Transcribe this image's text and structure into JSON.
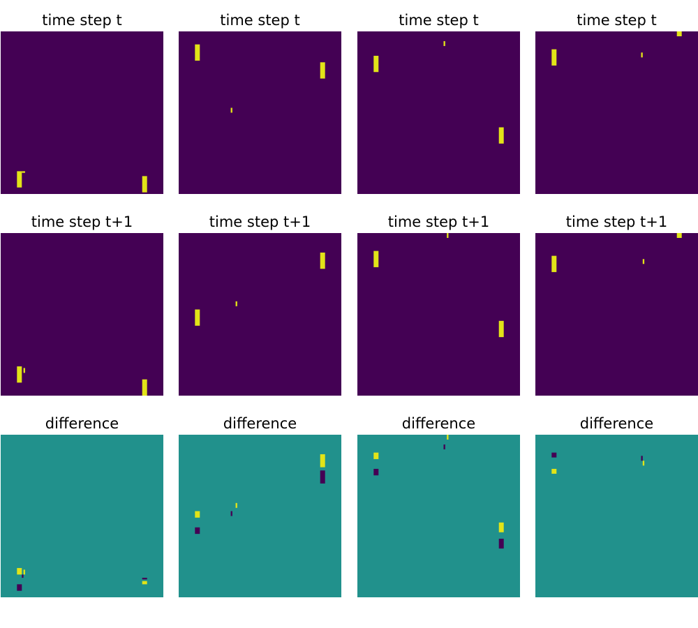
{
  "colors": {
    "background": "#440154",
    "object": "#e2e418",
    "diff_background": "#21918c",
    "diff_positive": "#e2e418",
    "diff_negative": "#440154"
  },
  "chart_data": {
    "type": "heatmap",
    "layout": {
      "rows": 3,
      "cols": 4
    },
    "grid_size": 100,
    "row_titles": [
      "time step t",
      "time step t+1",
      "difference"
    ],
    "row_types": [
      "frame",
      "frame",
      "difference"
    ],
    "panels": [
      [
        {
          "cells": [
            [
              10,
              86,
              3,
              10,
              1
            ],
            [
              13,
              86,
              2,
              1,
              1
            ],
            [
              87,
              89,
              3,
              10,
              1
            ]
          ]
        },
        {
          "cells": [
            [
              10,
              8,
              3,
              10,
              1
            ],
            [
              32,
              47,
              1,
              3,
              1
            ],
            [
              87,
              19,
              3,
              10,
              1
            ]
          ]
        },
        {
          "cells": [
            [
              10,
              15,
              3,
              10,
              1
            ],
            [
              53,
              6,
              1,
              3,
              1
            ],
            [
              87,
              59,
              3,
              10,
              1
            ]
          ]
        },
        {
          "cells": [
            [
              10,
              11,
              3,
              10,
              1
            ],
            [
              65,
              13,
              1,
              3,
              1
            ],
            [
              87,
              0,
              3,
              3,
              1
            ]
          ]
        }
      ],
      [
        {
          "cells": [
            [
              10,
              82,
              3,
              10,
              1
            ],
            [
              14,
              83,
              1,
              3,
              1
            ],
            [
              87,
              90,
              3,
              10,
              1
            ]
          ]
        },
        {
          "cells": [
            [
              10,
              47,
              3,
              10,
              1
            ],
            [
              35,
              42,
              1,
              3,
              1
            ],
            [
              87,
              12,
              3,
              10,
              1
            ]
          ]
        },
        {
          "cells": [
            [
              10,
              11,
              3,
              10,
              1
            ],
            [
              55,
              0,
              1,
              3,
              1
            ],
            [
              87,
              54,
              3,
              10,
              1
            ]
          ]
        },
        {
          "cells": [
            [
              10,
              14,
              3,
              10,
              1
            ],
            [
              66,
              16,
              1,
              3,
              1
            ],
            [
              87,
              0,
              3,
              3,
              1
            ]
          ]
        }
      ],
      [
        {
          "cells": [
            [
              10,
              82,
              3,
              4,
              1
            ],
            [
              14,
              83,
              1,
              3,
              1
            ],
            [
              13,
              86,
              1,
              2,
              -1
            ],
            [
              10,
              92,
              3,
              4,
              -1
            ],
            [
              87,
              90,
              3,
              2,
              1
            ],
            [
              87,
              88,
              3,
              1,
              -1
            ]
          ]
        },
        {
          "cells": [
            [
              10,
              47,
              3,
              4,
              1
            ],
            [
              10,
              57,
              3,
              4,
              -1
            ],
            [
              35,
              42,
              1,
              3,
              1
            ],
            [
              32,
              47,
              1,
              3,
              -1
            ],
            [
              87,
              12,
              3,
              8,
              1
            ],
            [
              87,
              22,
              3,
              8,
              -1
            ]
          ]
        },
        {
          "cells": [
            [
              10,
              11,
              3,
              4,
              1
            ],
            [
              10,
              21,
              3,
              4,
              -1
            ],
            [
              55,
              0,
              1,
              3,
              1
            ],
            [
              53,
              6,
              1,
              3,
              -1
            ],
            [
              87,
              54,
              3,
              6,
              1
            ],
            [
              87,
              64,
              3,
              6,
              -1
            ]
          ]
        },
        {
          "cells": [
            [
              10,
              11,
              3,
              3,
              -1
            ],
            [
              10,
              21,
              3,
              3,
              1
            ],
            [
              65,
              13,
              1,
              3,
              -1
            ],
            [
              66,
              16,
              1,
              3,
              1
            ]
          ]
        }
      ]
    ]
  }
}
